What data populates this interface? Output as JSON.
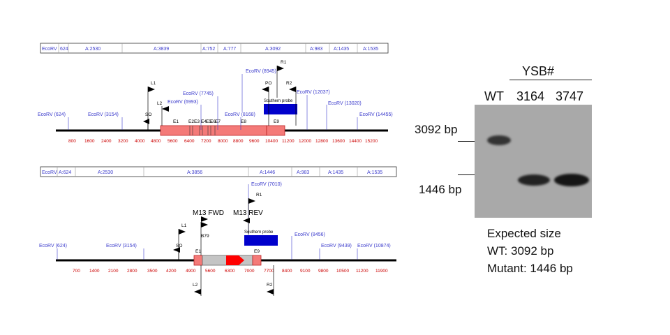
{
  "colors": {
    "ecorv": "#3b3bcc",
    "tick": "#cc0000",
    "exon": "#f47a78",
    "probe": "#0000cc",
    "cassette": "#c4c4c4",
    "arrow": "#ff0000"
  },
  "top": {
    "segments": [
      {
        "label": "EcoRV"
      },
      {
        "label": "624"
      },
      {
        "label": "A:2530"
      },
      {
        "label": "A:3839"
      },
      {
        "label": "A:752"
      },
      {
        "label": "A:777"
      },
      {
        "label": "A:3092"
      },
      {
        "label": "A:983"
      },
      {
        "label": "A:1435"
      },
      {
        "label": "A:1535"
      }
    ],
    "ticks": [
      "800",
      "1600",
      "2400",
      "3200",
      "4000",
      "4800",
      "5600",
      "6400",
      "7200",
      "8000",
      "8800",
      "9600",
      "10400",
      "11200",
      "12000",
      "12800",
      "13600",
      "14400",
      "15200"
    ],
    "sites_below": [
      "EcoRV (624)",
      "EcoRV (3154)",
      "EcoRV (6993)",
      "EcoRV (7745)",
      "EcoRV (8168)",
      "EcoRV (8945)",
      "EcoRV (12037)",
      "EcoRV (13020)",
      "EcoRV (14455)"
    ],
    "exons": [
      "E1",
      "E2",
      "E3",
      "E4",
      "E5",
      "E6",
      "E7",
      "E8",
      "E9"
    ],
    "primers": {
      "L1": "L1",
      "L2": "L2",
      "SO": "SO",
      "PO": "PO",
      "R1": "R1",
      "R2": "R2"
    },
    "probe": "Southern probe"
  },
  "bottom": {
    "segments": [
      {
        "label": "EcoRV"
      },
      {
        "label": "A:624"
      },
      {
        "label": "A:2530"
      },
      {
        "label": "A:3856"
      },
      {
        "label": "A:1446"
      },
      {
        "label": "A:983"
      },
      {
        "label": "A:1435"
      },
      {
        "label": "A:1535"
      }
    ],
    "ticks": [
      "700",
      "1400",
      "2100",
      "2800",
      "3500",
      "4200",
      "4900",
      "5600",
      "6300",
      "7000",
      "7700",
      "8400",
      "9100",
      "9800",
      "10500",
      "11200",
      "11900"
    ],
    "sites": [
      "EcoRV (624)",
      "EcoRV (3154)",
      "EcoRV (7010)",
      "EcoRV (8456)",
      "EcoRV (9439)",
      "EcoRV (10874)"
    ],
    "exons": [
      "E1",
      "E9"
    ],
    "primers": {
      "L1": "L1",
      "L2": "L2",
      "SO": "SO",
      "R1": "R1",
      "R2": "R2",
      "B79": "B79",
      "M13F": "M13 FWD",
      "M13R": "M13 REV"
    },
    "probe": "Southern probe"
  },
  "gel": {
    "group_label": "YSB#",
    "lanes": [
      "WT",
      "3164",
      "3747"
    ],
    "size_upper": "3092 bp",
    "size_lower": "1446 bp",
    "legend_title": "Expected size",
    "legend_wt": "WT: 3092 bp",
    "legend_mut": "Mutant: 1446 bp"
  }
}
